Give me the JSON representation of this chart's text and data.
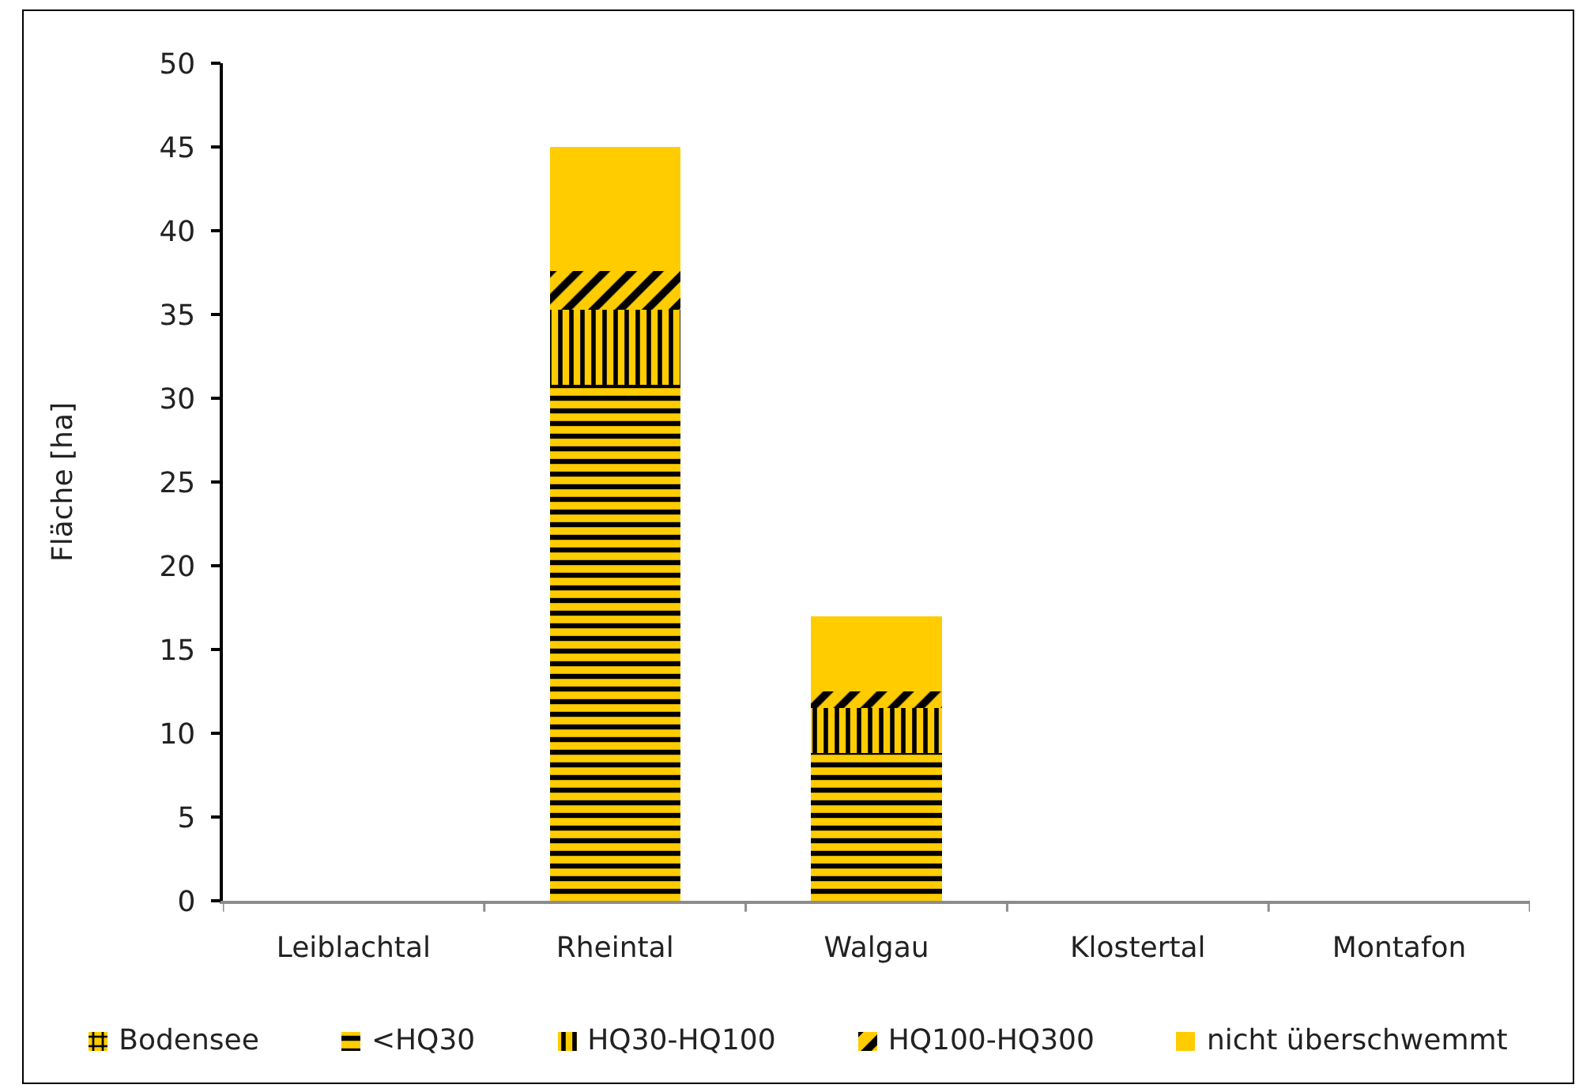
{
  "chart_data": {
    "type": "bar",
    "stacked": true,
    "ylabel": "Fläche [ha]",
    "categories": [
      "Leiblachtal",
      "Rheintal",
      "Walgau",
      "Klostertal",
      "Montafon"
    ],
    "series": [
      {
        "name": "Bodensee",
        "color": "#ffcc00",
        "values": [
          0,
          0,
          0,
          0,
          0
        ]
      },
      {
        "name": "<HQ30",
        "color": "#ffcc00",
        "values": [
          0,
          30.8,
          8.8,
          0,
          0
        ]
      },
      {
        "name": "HQ30-HQ100",
        "color": "#ffcc00",
        "values": [
          0,
          4.5,
          2.7,
          0,
          0
        ]
      },
      {
        "name": "HQ100-HQ300",
        "color": "#ffcc00",
        "values": [
          0,
          2.3,
          1.0,
          0,
          0
        ]
      },
      {
        "name": "nicht überschwemmt",
        "color": "#ffcc00",
        "values": [
          0,
          7.4,
          4.5,
          0,
          0
        ]
      }
    ],
    "ylim": [
      0,
      50
    ],
    "yticks": [
      0,
      5,
      10,
      15,
      20,
      25,
      30,
      35,
      40,
      45,
      50
    ],
    "grid": false,
    "legend": "bottom"
  }
}
